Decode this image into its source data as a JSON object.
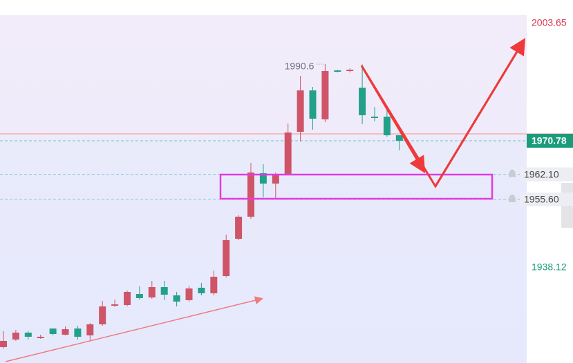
{
  "chart_data": {
    "type": "candlestick",
    "open": [
      1917.39,
      1919.35,
      1921.14,
      1919.71,
      1922.21,
      1920.6,
      1922.21,
      1920.42,
      1923.28,
      1928.1,
      1928.28,
      1931.14,
      1930.25,
      1932.92,
      1930.78,
      1929.53,
      1932.75,
      1931.32,
      1935.78,
      1945.42,
      1951.14,
      1962.39,
      1959.71,
      1962.21,
      1973.1,
      1983.82,
      1976.32,
      1989.0,
      1988.82,
      1984.53,
      1977.03,
      1977.03,
      1972.21
    ],
    "high": [
      1921.5,
      1921.85,
      1921.5,
      1920.6,
      1922.21,
      1922.75,
      1922.92,
      1923.64,
      1929.35,
      1929.71,
      1932.03,
      1933.1,
      1934.53,
      1934.53,
      1931.67,
      1933.28,
      1934.0,
      1937.21,
      1946.5,
      1951.5,
      1965.07,
      1964.71,
      1962.57,
      1975.25,
      1987.57,
      1984.71,
      1990.6,
      1989.17,
      1989.53,
      1990.55,
      1979.53,
      1979.0,
      1972.21
    ],
    "low": [
      1917.03,
      1919.0,
      1919.35,
      1919.53,
      1920.42,
      1920.42,
      1919.35,
      1919.0,
      1922.92,
      1927.75,
      1927.92,
      1929.71,
      1929.89,
      1929.53,
      1927.92,
      1929.17,
      1930.78,
      1930.78,
      1935.42,
      1945.07,
      1950.6,
      1956.14,
      1955.78,
      1961.85,
      1970.6,
      1973.64,
      1975.6,
      1988.46,
      1988.46,
      1975.07,
      1975.78,
      1971.85,
      1968.28
    ],
    "close": [
      1919.0,
      1921.14,
      1920.07,
      1920.07,
      1920.78,
      1922.03,
      1920.07,
      1923.28,
      1927.92,
      1928.46,
      1931.67,
      1930.07,
      1932.92,
      1930.96,
      1929.17,
      1932.57,
      1931.32,
      1935.6,
      1945.07,
      1951.14,
      1962.57,
      1959.71,
      1962.21,
      1972.92,
      1983.82,
      1976.5,
      1988.82,
      1988.64,
      1989.17,
      1977.39,
      1976.67,
      1972.21,
      1970.78
    ],
    "up_color": "#cf5468",
    "down_color": "#23a08a",
    "ylim": [
      1913.28,
      2003.28
    ],
    "reference_lines": [
      {
        "value": 1972.57,
        "color": "#f4a3a3"
      }
    ],
    "price_markers": [
      {
        "value": 2003.65,
        "label": "2003.65",
        "kind": "high",
        "color": "#d9344f"
      },
      {
        "value": 1970.78,
        "label": "1970.78",
        "kind": "current",
        "color": "#1a9c7a"
      },
      {
        "value": 1962.1,
        "label": "1962.10",
        "kind": "alert",
        "color": "#444444"
      },
      {
        "value": 1955.6,
        "label": "1955.60",
        "kind": "alert",
        "color": "#444444"
      },
      {
        "value": 1938.12,
        "label": "1938.12",
        "kind": "low",
        "color": "#1a9c7a"
      }
    ]
  }
}
